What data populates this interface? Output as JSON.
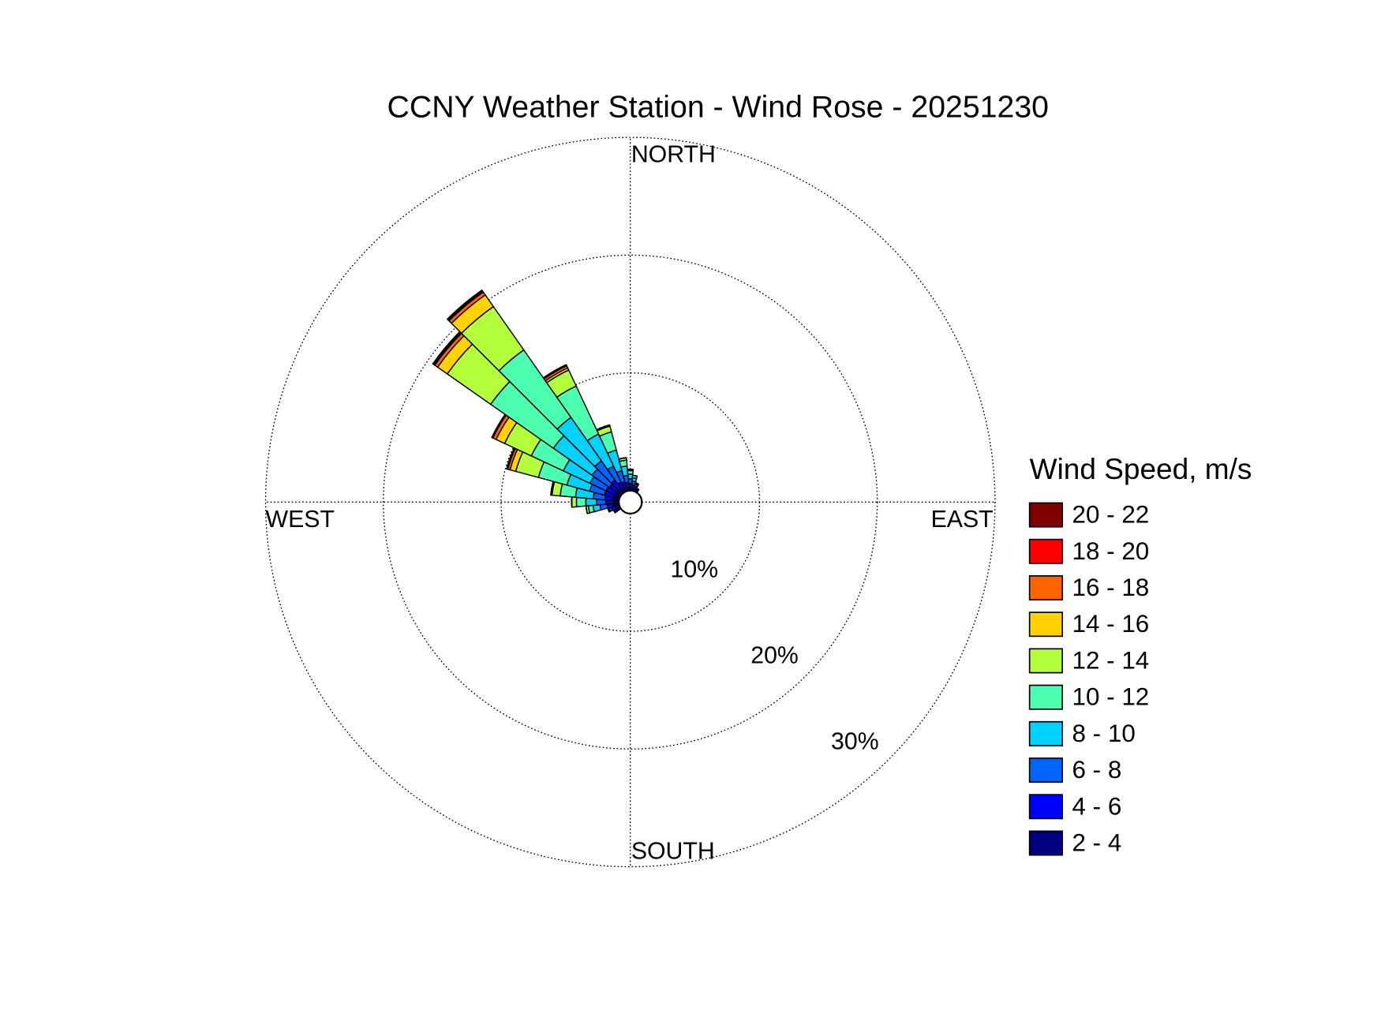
{
  "chart_data": {
    "type": "windrose",
    "title": "CCNY Weather Station - Wind Rose - 20251230",
    "legend_title": "Wind Speed, m/s",
    "compass": {
      "north": "NORTH",
      "east": "EAST",
      "south": "SOUTH",
      "west": "WEST"
    },
    "directions": [
      240,
      250,
      260,
      270,
      280,
      290,
      300,
      310,
      320,
      330,
      340,
      350,
      0,
      10,
      20,
      30
    ],
    "rlim": [
      0,
      30
    ],
    "rticks": [
      {
        "value": 10,
        "label": "10%"
      },
      {
        "value": 20,
        "label": "20%"
      },
      {
        "value": 30,
        "label": "30%"
      }
    ],
    "grid": true,
    "legend": "right",
    "series": [
      {
        "name": "2 - 4",
        "color": "#000080",
        "values": [
          0.3,
          0.4,
          0.5,
          0.5,
          0.5,
          0.5,
          0.5,
          0.4,
          0.4,
          0.3,
          0.3,
          0.3,
          0.3,
          0.2,
          0.2,
          0.2
        ]
      },
      {
        "name": "4 - 6",
        "color": "#0000ff",
        "values": [
          0.2,
          0.3,
          0.5,
          0.6,
          0.7,
          0.8,
          0.8,
          0.8,
          0.9,
          0.6,
          0.5,
          0.4,
          0.3,
          0.3,
          0.2,
          0.1
        ]
      },
      {
        "name": "6 - 8",
        "color": "#0064ff",
        "values": [
          0.1,
          0.2,
          0.6,
          0.8,
          1.0,
          1.3,
          1.5,
          1.8,
          2.0,
          1.5,
          1.0,
          0.6,
          0.4,
          0.3,
          0.2,
          0
        ]
      },
      {
        "name": "8 - 10",
        "color": "#00d2ff",
        "values": [
          0,
          0.1,
          0.6,
          0.9,
          1.5,
          2.0,
          2.5,
          4.0,
          4.5,
          3.0,
          1.8,
          0.8,
          0.4,
          0.3,
          0.1,
          0
        ]
      },
      {
        "name": "10 - 12",
        "color": "#4cffb0",
        "values": [
          0,
          0,
          0.4,
          0.8,
          1.3,
          2.5,
          3.0,
          6.5,
          7.0,
          4.5,
          1.6,
          0.5,
          0.3,
          0.2,
          0,
          0
        ]
      },
      {
        "name": "12 - 14",
        "color": "#b4ff3c",
        "values": [
          0,
          0,
          0.2,
          0.4,
          0.7,
          2.0,
          2.5,
          4.5,
          4.5,
          1.5,
          0.5,
          0.2,
          0.1,
          0,
          0,
          0
        ]
      },
      {
        "name": "14 - 16",
        "color": "#ffd200",
        "values": [
          0,
          0,
          0,
          0,
          0.1,
          0.5,
          0.8,
          1.0,
          1.2,
          0.2,
          0.1,
          0,
          0,
          0,
          0,
          0
        ]
      },
      {
        "name": "16 - 18",
        "color": "#ff6400",
        "values": [
          0,
          0,
          0,
          0,
          0,
          0.2,
          0.3,
          0.3,
          0.3,
          0.2,
          0,
          0,
          0,
          0,
          0,
          0
        ]
      },
      {
        "name": "18 - 20",
        "color": "#ff0000",
        "values": [
          0,
          0,
          0,
          0,
          0,
          0.1,
          0.1,
          0.1,
          0.1,
          0.1,
          0,
          0,
          0,
          0,
          0,
          0
        ]
      },
      {
        "name": "20 - 22",
        "color": "#800000",
        "values": [
          0,
          0,
          0,
          0,
          0,
          0,
          0,
          0.1,
          0.1,
          0,
          0,
          0,
          0,
          0,
          0,
          0
        ]
      }
    ]
  }
}
